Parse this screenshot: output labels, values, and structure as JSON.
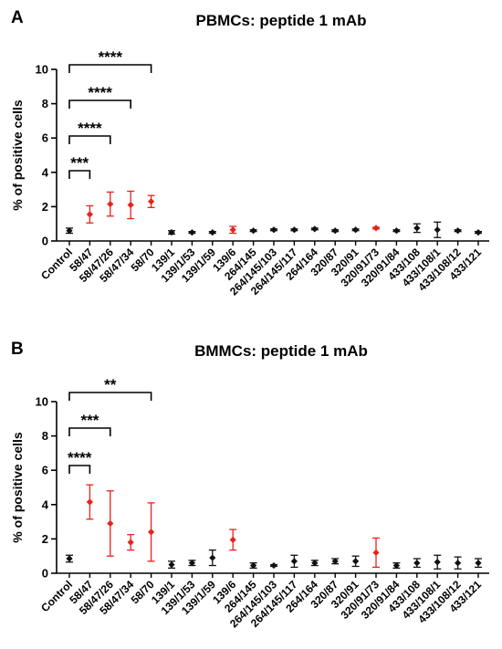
{
  "chart_data": [
    {
      "type": "scatter",
      "panel_label": "A",
      "title": "PBMCs: peptide 1 mAb",
      "xlabel": "",
      "ylabel": "% of positive cells",
      "ylim": [
        0,
        10
      ],
      "yticks": [
        "0",
        "2",
        "4",
        "6",
        "8",
        "10"
      ],
      "categories": [
        "Control",
        "58/47",
        "58/47/26",
        "58/47/34",
        "58/70",
        "139/1",
        "139/1/53",
        "139/1/59",
        "139/6",
        "264/145",
        "264/145/103",
        "264/145/117",
        "264/164",
        "320/87",
        "320/91",
        "320/91/73",
        "320/91/84",
        "433/108",
        "433/108/1",
        "433/108/12",
        "433/121"
      ],
      "values": [
        0.6,
        1.55,
        2.15,
        2.1,
        2.3,
        0.5,
        0.5,
        0.5,
        0.65,
        0.6,
        0.65,
        0.65,
        0.7,
        0.6,
        0.65,
        0.75,
        0.6,
        0.75,
        0.65,
        0.6,
        0.5
      ],
      "errors": [
        0.15,
        0.5,
        0.7,
        0.8,
        0.35,
        0.1,
        0.05,
        0.05,
        0.2,
        0.05,
        0.05,
        0.05,
        0.05,
        0.05,
        0.05,
        0.05,
        0.05,
        0.25,
        0.45,
        0.05,
        0.05
      ],
      "colors": [
        "#111111",
        "#e8221c",
        "#e8221c",
        "#e8221c",
        "#e8221c",
        "#111111",
        "#111111",
        "#111111",
        "#e8221c",
        "#111111",
        "#111111",
        "#111111",
        "#111111",
        "#111111",
        "#111111",
        "#e8221c",
        "#111111",
        "#111111",
        "#111111",
        "#111111",
        "#111111"
      ],
      "significance": [
        {
          "from": 0,
          "to": 1,
          "label": "***"
        },
        {
          "from": 0,
          "to": 2,
          "label": "****"
        },
        {
          "from": 0,
          "to": 3,
          "label": "****"
        },
        {
          "from": 0,
          "to": 4,
          "label": "****"
        }
      ]
    },
    {
      "type": "scatter",
      "panel_label": "B",
      "title": "BMMCs: peptide 1 mAb",
      "xlabel": "",
      "ylabel": "% of positive cells",
      "ylim": [
        0,
        10
      ],
      "yticks": [
        "0",
        "2",
        "4",
        "6",
        "8",
        "10"
      ],
      "categories": [
        "Control",
        "58/47",
        "58/47/26",
        "58/47/34",
        "58/70",
        "139/1",
        "139/1/53",
        "139/1/59",
        "139/6",
        "264/145",
        "264/145/103",
        "264/145/117",
        "264/164",
        "320/87",
        "320/91",
        "320/91/73",
        "320/91/84",
        "433/108",
        "433/108/1",
        "433/108/12",
        "433/121"
      ],
      "values": [
        0.85,
        4.15,
        2.9,
        1.8,
        2.4,
        0.5,
        0.6,
        0.9,
        1.95,
        0.45,
        0.45,
        0.7,
        0.6,
        0.7,
        0.7,
        1.2,
        0.45,
        0.6,
        0.65,
        0.6,
        0.6
      ],
      "errors": [
        0.2,
        1.0,
        1.9,
        0.45,
        1.7,
        0.2,
        0.15,
        0.45,
        0.6,
        0.15,
        0.05,
        0.35,
        0.15,
        0.15,
        0.3,
        0.85,
        0.15,
        0.25,
        0.4,
        0.35,
        0.25
      ],
      "colors": [
        "#111111",
        "#e8221c",
        "#e8221c",
        "#e8221c",
        "#e8221c",
        "#111111",
        "#111111",
        "#111111",
        "#e8221c",
        "#111111",
        "#111111",
        "#111111",
        "#111111",
        "#111111",
        "#111111",
        "#e8221c",
        "#111111",
        "#111111",
        "#111111",
        "#111111",
        "#111111"
      ],
      "significance": [
        {
          "from": 0,
          "to": 1,
          "label": "****"
        },
        {
          "from": 0,
          "to": 2,
          "label": "***"
        },
        {
          "from": 0,
          "to": 4,
          "label": "**"
        }
      ]
    }
  ]
}
